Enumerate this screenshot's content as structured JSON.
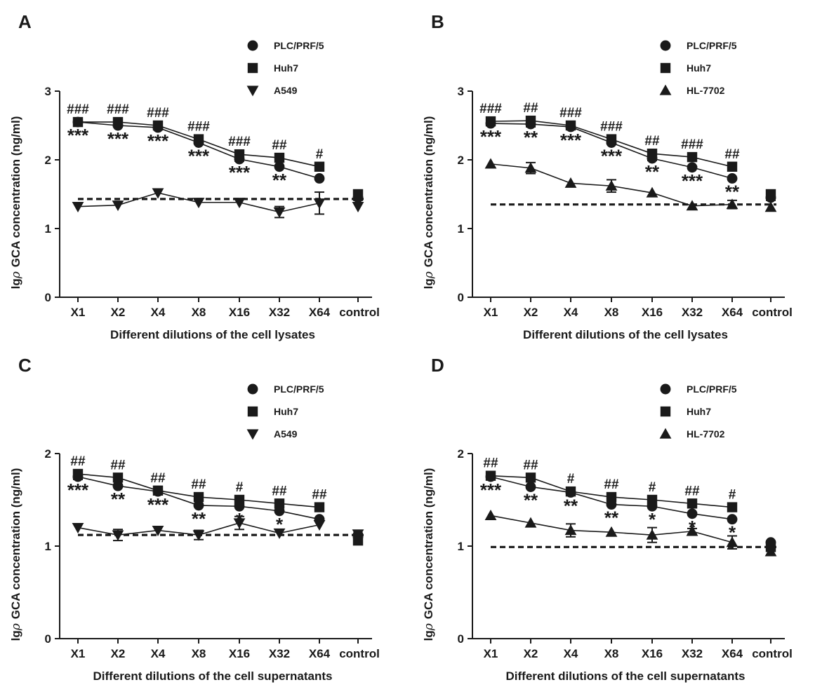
{
  "chart_data": [
    {
      "panel": "A",
      "type": "line",
      "xlabel": "Different dilutions of the cell lysates",
      "ylabel_prefix": "lg",
      "ylabel_symbol": "ρ",
      "ylabel": "GCA concentration (ng/ml)",
      "categories": [
        "X1",
        "X2",
        "X4",
        "X8",
        "X16",
        "X32",
        "X64",
        "control"
      ],
      "ylim": [
        0,
        3
      ],
      "yticks": [
        0,
        1,
        2,
        3
      ],
      "legend_placement": "top-right",
      "grid": false,
      "reference_line": 1.43,
      "series": [
        {
          "name": "PLC/PRF/5",
          "marker": "circle",
          "values": [
            2.55,
            2.5,
            2.47,
            2.25,
            2.01,
            1.9,
            1.73,
            1.45
          ],
          "errors": [
            0.02,
            0.02,
            0.02,
            0.02,
            0.03,
            0.02,
            0.02,
            0.04
          ]
        },
        {
          "name": "Huh7",
          "marker": "square",
          "values": [
            2.55,
            2.55,
            2.5,
            2.3,
            2.08,
            2.03,
            1.9,
            1.5
          ],
          "errors": [
            0.02,
            0.02,
            0.02,
            0.02,
            0.06,
            0.02,
            0.02,
            0.04
          ]
        },
        {
          "name": "A549",
          "marker": "triangle-down",
          "values": [
            1.32,
            1.34,
            1.52,
            1.38,
            1.38,
            1.24,
            1.37,
            1.32
          ],
          "errors": [
            0.02,
            0.02,
            0.02,
            0.02,
            0.02,
            0.08,
            0.16,
            0.02
          ]
        }
      ],
      "annotations_hash": [
        "###",
        "###",
        "###",
        "###",
        "###",
        "##",
        "#"
      ],
      "annotations_star": [
        "***",
        "***",
        "***",
        "***",
        "***",
        "**",
        ""
      ]
    },
    {
      "panel": "B",
      "type": "line",
      "xlabel": "Different dilutions of the cell lysates",
      "ylabel_prefix": "lg",
      "ylabel_symbol": "ρ",
      "ylabel": "GCA concentration (ng/ml)",
      "categories": [
        "X1",
        "X2",
        "X4",
        "X8",
        "X16",
        "X32",
        "X64",
        "control"
      ],
      "ylim": [
        0,
        3
      ],
      "yticks": [
        0,
        1,
        2,
        3
      ],
      "legend_placement": "top-right",
      "grid": false,
      "reference_line": 1.35,
      "series": [
        {
          "name": "PLC/PRF/5",
          "marker": "circle",
          "values": [
            2.53,
            2.52,
            2.48,
            2.25,
            2.02,
            1.89,
            1.73,
            1.45
          ],
          "errors": [
            0.02,
            0.04,
            0.02,
            0.02,
            0.03,
            0.02,
            0.02,
            0.04
          ]
        },
        {
          "name": "Huh7",
          "marker": "square",
          "values": [
            2.56,
            2.57,
            2.5,
            2.3,
            2.09,
            2.04,
            1.9,
            1.5
          ],
          "errors": [
            0.02,
            0.02,
            0.02,
            0.02,
            0.03,
            0.02,
            0.02,
            0.04
          ]
        },
        {
          "name": "HL-7702",
          "marker": "triangle-up",
          "values": [
            1.94,
            1.88,
            1.66,
            1.62,
            1.52,
            1.33,
            1.35,
            1.31
          ],
          "errors": [
            0.02,
            0.08,
            0.02,
            0.09,
            0.02,
            0.02,
            0.06,
            0.02
          ]
        }
      ],
      "annotations_hash": [
        "###",
        "##",
        "###",
        "###",
        "##",
        "###",
        "##"
      ],
      "annotations_star": [
        "***",
        "**",
        "***",
        "***",
        "**",
        "***",
        "**"
      ]
    },
    {
      "panel": "C",
      "type": "line",
      "xlabel": "Different dilutions of the cell supernatants",
      "ylabel_prefix": "lg",
      "ylabel_symbol": "ρ",
      "ylabel": "GCA concentration (ng/ml)",
      "categories": [
        "X1",
        "X2",
        "X4",
        "X8",
        "X16",
        "X32",
        "X64",
        "control"
      ],
      "ylim": [
        0,
        2
      ],
      "yticks": [
        0,
        1,
        2
      ],
      "legend_placement": "top-right",
      "grid": false,
      "reference_line": 1.12,
      "series": [
        {
          "name": "PLC/PRF/5",
          "marker": "circle",
          "values": [
            1.75,
            1.65,
            1.59,
            1.44,
            1.43,
            1.38,
            1.29,
            1.1
          ],
          "errors": [
            0.03,
            0.02,
            0.02,
            0.02,
            0.02,
            0.02,
            0.02,
            0.04
          ]
        },
        {
          "name": "Huh7",
          "marker": "square",
          "values": [
            1.78,
            1.74,
            1.6,
            1.53,
            1.5,
            1.46,
            1.42,
            1.06
          ],
          "errors": [
            0.03,
            0.02,
            0.02,
            0.02,
            0.02,
            0.02,
            0.02,
            0.04
          ]
        },
        {
          "name": "A549",
          "marker": "triangle-down",
          "values": [
            1.2,
            1.12,
            1.17,
            1.12,
            1.25,
            1.14,
            1.23,
            1.13
          ],
          "errors": [
            0.02,
            0.06,
            0.02,
            0.05,
            0.07,
            0.02,
            0.02,
            0.02
          ]
        }
      ],
      "annotations_hash": [
        "##",
        "##",
        "##",
        "##",
        "#",
        "##",
        "##"
      ],
      "annotations_star": [
        "***",
        "**",
        "***",
        "**",
        "*",
        "*",
        ""
      ]
    },
    {
      "panel": "D",
      "type": "line",
      "xlabel": "Different dilutions of the cell supernatants",
      "ylabel_prefix": "lg",
      "ylabel_symbol": "ρ",
      "ylabel": "GCA concentration (ng/ml)",
      "categories": [
        "X1",
        "X2",
        "X4",
        "X8",
        "X16",
        "X32",
        "X64",
        "control"
      ],
      "ylim": [
        0,
        2
      ],
      "yticks": [
        0,
        1,
        2
      ],
      "legend_placement": "top-right",
      "grid": false,
      "reference_line": 0.99,
      "series": [
        {
          "name": "PLC/PRF/5",
          "marker": "circle",
          "values": [
            1.75,
            1.64,
            1.58,
            1.45,
            1.43,
            1.35,
            1.29,
            1.04
          ],
          "errors": [
            0.02,
            0.02,
            0.02,
            0.02,
            0.02,
            0.02,
            0.02,
            0.02
          ]
        },
        {
          "name": "Huh7",
          "marker": "square",
          "values": [
            1.76,
            1.74,
            1.59,
            1.53,
            1.5,
            1.46,
            1.42,
            0.99
          ],
          "errors": [
            0.04,
            0.02,
            0.02,
            0.02,
            0.02,
            0.02,
            0.02,
            0.02
          ]
        },
        {
          "name": "HL-7702",
          "marker": "triangle-up",
          "values": [
            1.33,
            1.25,
            1.17,
            1.15,
            1.12,
            1.16,
            1.04,
            0.94
          ],
          "errors": [
            0.02,
            0.02,
            0.07,
            0.02,
            0.08,
            0.03,
            0.07,
            0.02
          ]
        }
      ],
      "annotations_hash": [
        "##",
        "##",
        "#",
        "##",
        "#",
        "##",
        "#"
      ],
      "annotations_star": [
        "***",
        "**",
        "**",
        "**",
        "*",
        "*",
        "*"
      ]
    }
  ]
}
